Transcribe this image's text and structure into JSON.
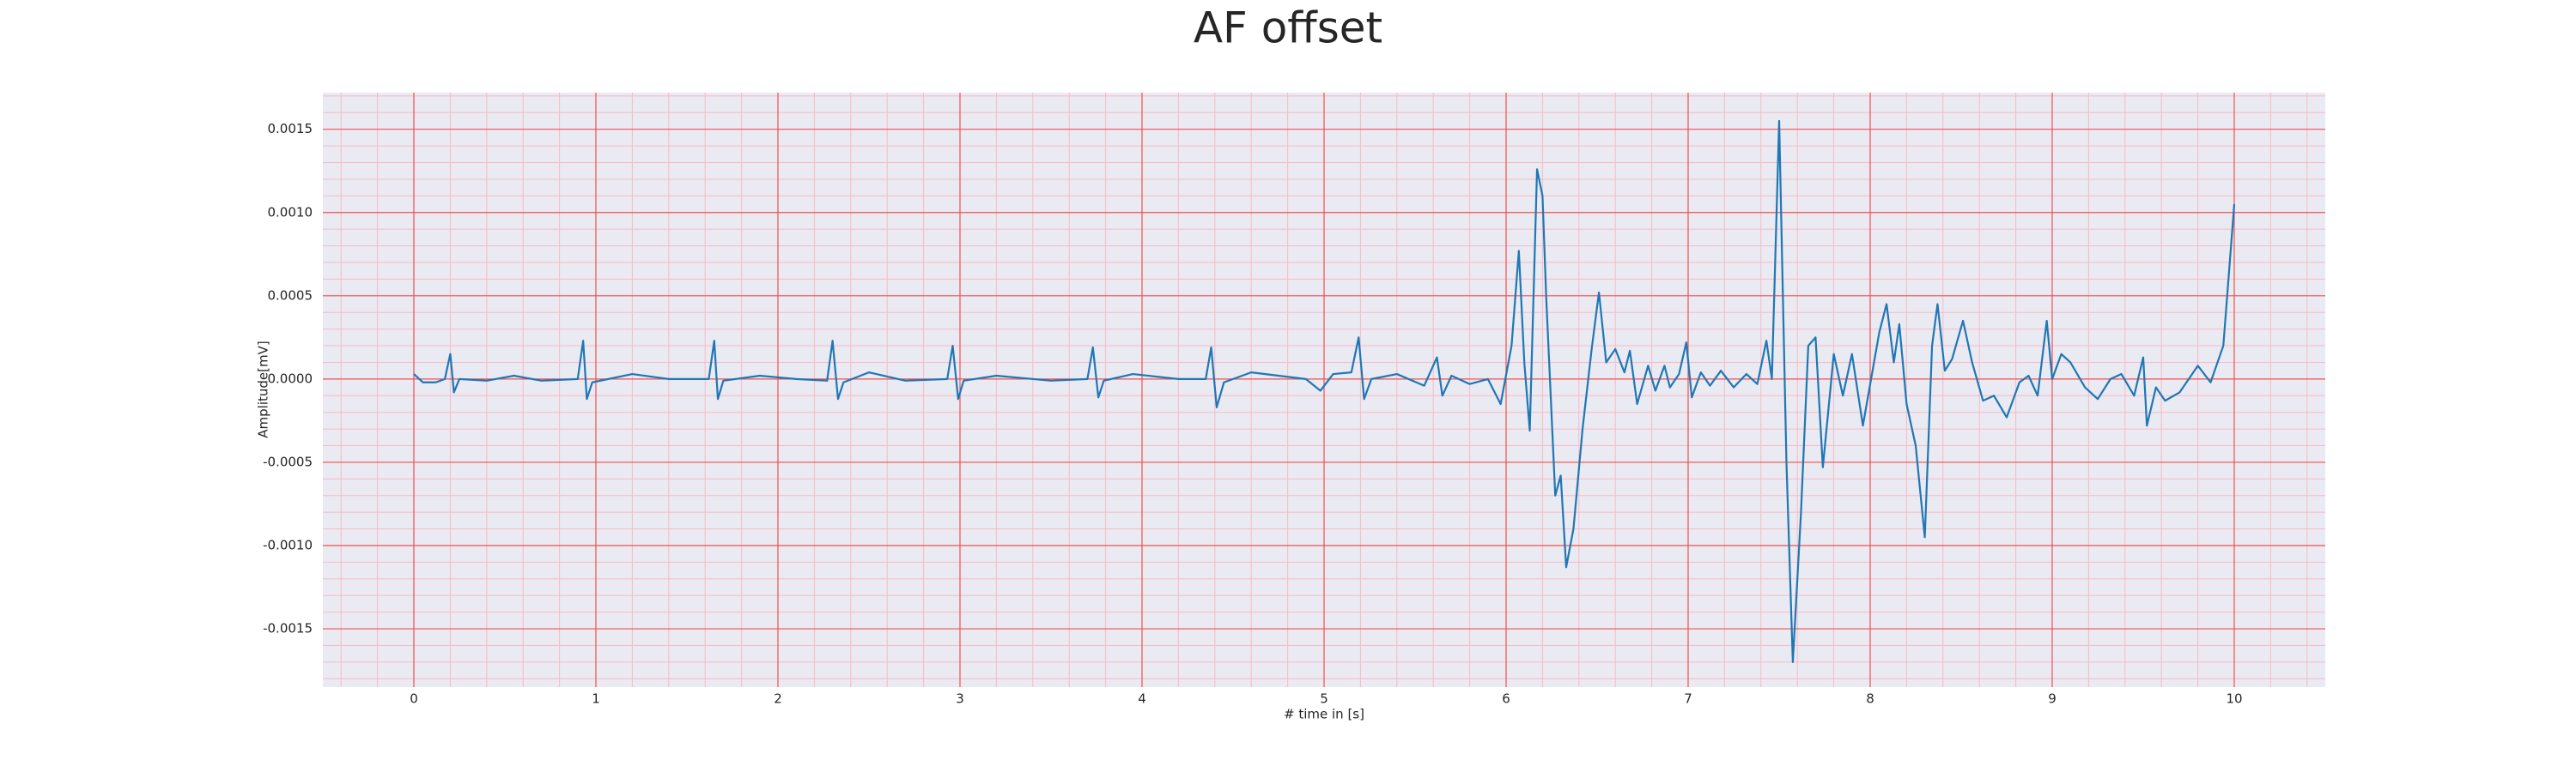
{
  "chart_data": {
    "type": "line",
    "title": "AF offset",
    "x_label": "# time in [s]",
    "y_label": "Amplitude[mV]",
    "color": "#1f77b4",
    "grid": true,
    "minor_grid": true,
    "xlim": [
      -0.5,
      10.5
    ],
    "xticks": [
      0,
      1,
      2,
      3,
      4,
      5,
      6,
      7,
      8,
      9,
      10
    ],
    "ylim": [
      -0.00185,
      0.00172
    ],
    "yticks": [
      -0.0015,
      {
        "value": -0.001,
        "label": "-0.0010"
      },
      -0.0005,
      {
        "value": 0,
        "label": "0.0000"
      },
      0.0005,
      {
        "value": 0.001,
        "label": "0.0010"
      },
      0.0015
    ],
    "x": [
      0,
      0.05,
      0.12,
      0.17,
      0.2,
      0.22,
      0.25,
      0.4,
      0.55,
      0.7,
      0.9,
      0.93,
      0.95,
      0.98,
      1.2,
      1.4,
      1.62,
      1.65,
      1.67,
      1.7,
      1.9,
      2.1,
      2.27,
      2.3,
      2.33,
      2.36,
      2.5,
      2.7,
      2.93,
      2.96,
      2.99,
      3.02,
      3.2,
      3.5,
      3.7,
      3.73,
      3.76,
      3.79,
      3.95,
      4.2,
      4.35,
      4.38,
      4.41,
      4.45,
      4.6,
      4.9,
      4.98,
      5.05,
      5.15,
      5.19,
      5.22,
      5.26,
      5.4,
      5.55,
      5.62,
      5.65,
      5.7,
      5.8,
      5.9,
      5.97,
      6.03,
      6.07,
      6.1,
      6.13,
      6.17,
      6.2,
      6.22,
      6.27,
      6.3,
      6.33,
      6.37,
      6.42,
      6.47,
      6.51,
      6.55,
      6.6,
      6.65,
      6.68,
      6.72,
      6.78,
      6.82,
      6.87,
      6.9,
      6.95,
      6.99,
      7.02,
      7.07,
      7.12,
      7.18,
      7.25,
      7.32,
      7.38,
      7.43,
      7.46,
      7.5,
      7.54,
      7.575,
      7.62,
      7.66,
      7.7,
      7.74,
      7.8,
      7.85,
      7.9,
      7.96,
      8.05,
      8.09,
      8.13,
      8.16,
      8.2,
      8.25,
      8.3,
      8.34,
      8.37,
      8.41,
      8.45,
      8.51,
      8.56,
      8.62,
      8.68,
      8.75,
      8.82,
      8.87,
      8.92,
      8.97,
      9.0,
      9.05,
      9.1,
      9.18,
      9.25,
      9.32,
      9.38,
      9.45,
      9.5,
      9.52,
      9.57,
      9.62,
      9.7,
      9.8,
      9.87,
      9.94,
      10.0
    ],
    "values": [
      3e-05,
      -2e-05,
      -2e-05,
      0.0,
      0.00015,
      -8e-05,
      0.0,
      -1e-05,
      2e-05,
      -1e-05,
      0.0,
      0.00023,
      -0.00012,
      -2e-05,
      3e-05,
      0.0,
      0.0,
      0.00023,
      -0.00012,
      -1e-05,
      2e-05,
      0.0,
      -1e-05,
      0.00023,
      -0.00012,
      -2e-05,
      4e-05,
      -1e-05,
      0.0,
      0.0002,
      -0.00012,
      -1e-05,
      2e-05,
      -1e-05,
      0.0,
      0.00019,
      -0.00011,
      -1e-05,
      3e-05,
      0.0,
      0.0,
      0.00019,
      -0.00017,
      -2e-05,
      4e-05,
      0.0,
      -7e-05,
      3e-05,
      4e-05,
      0.00025,
      -0.00012,
      0.0,
      3e-05,
      -4e-05,
      0.00013,
      -0.0001,
      2e-05,
      -3e-05,
      0.0,
      -0.00015,
      0.0002,
      0.00077,
      0.0001,
      -0.00031,
      0.00126,
      0.0011,
      0.0005,
      -0.0007,
      -0.00058,
      -0.00113,
      -0.0009,
      -0.0003,
      0.00018,
      0.00052,
      0.0001,
      0.00018,
      4e-05,
      0.00017,
      -0.00015,
      8e-05,
      -7e-05,
      8e-05,
      -5e-05,
      3e-05,
      0.00022,
      -0.00011,
      4e-05,
      -4e-05,
      5e-05,
      -5e-05,
      3e-05,
      -3e-05,
      0.00023,
      0.0,
      0.00155,
      -0.0005,
      -0.0017,
      -0.0008,
      0.0002,
      0.00025,
      -0.00053,
      0.00015,
      -0.0001,
      0.00015,
      -0.00028,
      0.00028,
      0.00045,
      0.0001,
      0.00033,
      -0.00015,
      -0.0004,
      -0.00095,
      0.0002,
      0.00045,
      5e-05,
      0.00012,
      0.00035,
      0.0001,
      -0.00013,
      -0.0001,
      -0.00023,
      -2e-05,
      2e-05,
      -0.0001,
      0.00035,
      0.0,
      0.00015,
      0.0001,
      -5e-05,
      -0.00012,
      0.0,
      3e-05,
      -0.0001,
      0.00013,
      -0.00028,
      -5e-05,
      -0.00013,
      -8e-05,
      8e-05,
      -2e-05,
      0.0002,
      0.00105
    ]
  }
}
